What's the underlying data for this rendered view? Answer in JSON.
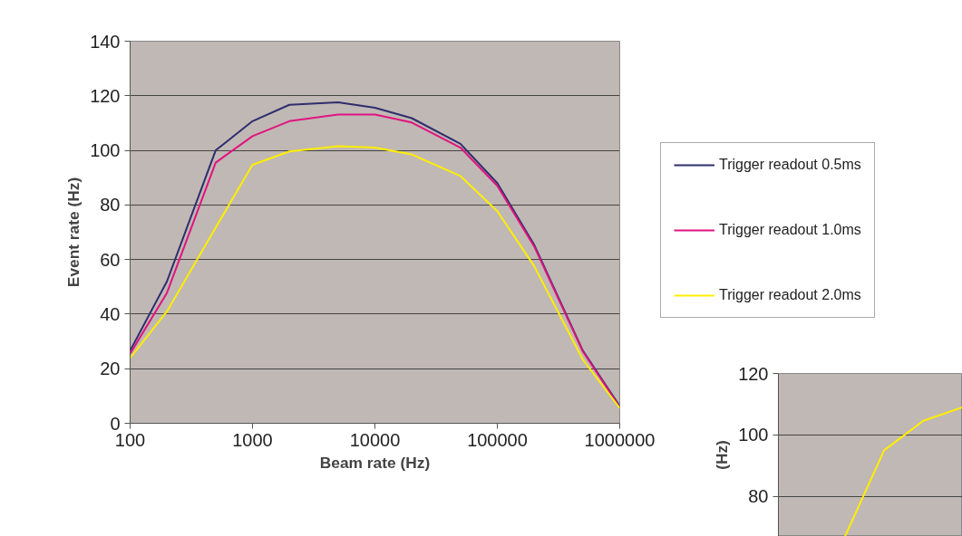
{
  "chart_data": [
    {
      "type": "line",
      "xlabel": "Beam rate (Hz)",
      "ylabel": "Event rate (Hz)",
      "log": "x",
      "grid": "y",
      "legend": "right",
      "marker": "none",
      "line_style": "solid",
      "x": [
        100,
        200,
        500,
        1000,
        2000,
        5000,
        10000,
        20000,
        50000,
        100000,
        200000,
        500000,
        1000000
      ],
      "xlim": [
        100,
        1000000
      ],
      "xticks": [
        100,
        1000,
        10000,
        100000,
        1000000
      ],
      "ylim": [
        0,
        140
      ],
      "yticks": [
        0,
        20,
        40,
        60,
        80,
        100,
        120,
        140
      ],
      "series": [
        {
          "name": "Trigger readout 0.5ms",
          "color": "#2e2e6e",
          "values": [
            26.6,
            52,
            100,
            110.7,
            116.7,
            117.6,
            115.6,
            111.8,
            102.4,
            88,
            65.4,
            26.6,
            6.3
          ]
        },
        {
          "name": "Trigger readout 1.0ms",
          "color": "#e0147f",
          "values": [
            25.5,
            47.8,
            95.5,
            105.2,
            110.7,
            113.1,
            113.1,
            110.2,
            101,
            87,
            64.8,
            26.3,
            5.9
          ]
        },
        {
          "name": "Trigger readout 2.0ms",
          "color": "#ffee00",
          "values": [
            23.9,
            41,
            71.7,
            94.7,
            99.6,
            101.5,
            101,
            98.5,
            90.6,
            77.7,
            57.6,
            23.3,
            5.6
          ]
        }
      ]
    },
    {
      "type": "line",
      "ylabel": "(Hz)",
      "grid": "y",
      "tick_labels": "y",
      "categories": [
        null,
        null,
        null,
        null
      ],
      "ylim": [
        67,
        120
      ],
      "yticks": [
        80,
        100,
        120
      ],
      "series": [
        {
          "color": "#ffee00",
          "values": [
            67,
            95,
            104.6,
            109
          ]
        }
      ]
    }
  ]
}
